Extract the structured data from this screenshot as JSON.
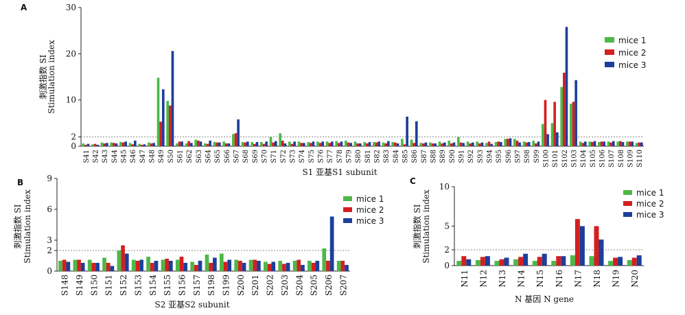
{
  "chart_data": [
    {
      "type": "bar",
      "panel_label": "A",
      "ylabel_cn": "刺激指数 SI",
      "ylabel_en": "Stimulation index",
      "xlabel": "S1 亚基S1 subunit",
      "ylim": [
        0,
        30
      ],
      "yticks": [
        0,
        2,
        10,
        20,
        30
      ],
      "threshold": 2,
      "categories": [
        "S41",
        "S42",
        "S43",
        "S44",
        "S45",
        "S46",
        "S47",
        "S48",
        "S49",
        "S50",
        "S61",
        "S62",
        "S63",
        "S64",
        "S65",
        "S66",
        "S67",
        "S68",
        "S69",
        "S70",
        "S71",
        "S72",
        "S73",
        "S74",
        "S75",
        "S76",
        "S77",
        "S78",
        "S79",
        "S80",
        "S81",
        "S82",
        "S83",
        "S84",
        "S85",
        "S86",
        "S87",
        "S88",
        "S89",
        "S90",
        "S91",
        "S92",
        "S93",
        "S94",
        "S95",
        "S96",
        "S97",
        "S98",
        "S99",
        "S100",
        "S101",
        "S102",
        "S103",
        "S104",
        "S105",
        "S106",
        "S107",
        "S108",
        "S109",
        "S110"
      ],
      "series": [
        {
          "name": "mice 1",
          "color": "#4db848",
          "values": [
            0.6,
            0.4,
            0.8,
            0.8,
            0.9,
            0.7,
            0.5,
            0.8,
            14.8,
            9.8,
            0.6,
            0.6,
            1.4,
            0.6,
            0.9,
            1.0,
            2.6,
            0.9,
            0.9,
            0.9,
            2.0,
            2.8,
            1.0,
            1.0,
            0.9,
            1.0,
            1.0,
            1.1,
            1.2,
            1.0,
            0.9,
            0.9,
            0.8,
            0.9,
            1.6,
            1.4,
            0.7,
            0.8,
            1.0,
            1.2,
            2.0,
            1.0,
            1.0,
            0.7,
            0.9,
            1.6,
            1.6,
            1.0,
            1.2,
            4.8,
            5.0,
            12.8,
            9.2,
            1.0,
            1.0,
            0.9,
            1.0,
            1.0,
            1.0,
            0.7
          ]
        },
        {
          "name": "mice 2",
          "color": "#d42020",
          "values": [
            0.3,
            0.5,
            0.6,
            0.7,
            0.8,
            0.4,
            0.3,
            0.6,
            5.3,
            8.8,
            1.0,
            1.1,
            1.2,
            0.5,
            0.8,
            0.6,
            2.8,
            0.8,
            0.5,
            0.5,
            0.8,
            1.2,
            0.5,
            0.7,
            0.7,
            0.7,
            0.7,
            0.7,
            0.8,
            0.6,
            0.6,
            0.8,
            0.6,
            0.8,
            0.4,
            0.7,
            0.6,
            0.6,
            0.6,
            0.6,
            0.8,
            0.6,
            0.6,
            1.0,
            1.0,
            1.6,
            1.2,
            0.8,
            0.6,
            10.0,
            9.6,
            15.9,
            9.6,
            0.7,
            0.9,
            1.0,
            0.8,
            1.1,
            1.0,
            0.8
          ]
        },
        {
          "name": "mice 3",
          "color": "#1d3f9a",
          "values": [
            0.5,
            0.3,
            0.7,
            0.6,
            1.0,
            1.2,
            0.4,
            0.7,
            12.3,
            20.6,
            1.0,
            0.7,
            1.0,
            1.2,
            0.8,
            0.6,
            5.8,
            1.0,
            0.9,
            1.0,
            1.1,
            0.6,
            1.0,
            0.7,
            1.0,
            1.0,
            1.0,
            1.0,
            0.7,
            0.6,
            0.9,
            1.0,
            1.1,
            0.6,
            6.4,
            5.4,
            0.8,
            0.6,
            0.8,
            0.8,
            0.7,
            0.8,
            0.8,
            0.5,
            0.9,
            1.7,
            0.8,
            0.9,
            1.0,
            2.6,
            3.0,
            25.8,
            14.3,
            1.0,
            1.1,
            1.0,
            1.1,
            0.9,
            1.0,
            0.8
          ]
        }
      ]
    },
    {
      "type": "bar",
      "panel_label": "B",
      "ylabel_cn": "刺激指数 SI",
      "ylabel_en": "Stimulation index",
      "xlabel": "S2 亚基S2 subunit",
      "ylim": [
        0,
        9
      ],
      "yticks": [
        0,
        2,
        3,
        6,
        9
      ],
      "threshold": 2,
      "categories": [
        "S148",
        "S149",
        "S150",
        "S151",
        "S152",
        "S153",
        "S154",
        "S155",
        "S156",
        "S157",
        "S198",
        "S199",
        "S200",
        "S201",
        "S202",
        "S203",
        "S204",
        "S205",
        "S206",
        "S207"
      ],
      "series": [
        {
          "name": "mice 1",
          "color": "#4db848",
          "values": [
            1.0,
            1.1,
            1.1,
            1.3,
            2.0,
            1.1,
            1.4,
            1.1,
            1.1,
            0.9,
            1.6,
            1.7,
            1.1,
            1.1,
            0.9,
            1.0,
            1.0,
            1.0,
            2.2,
            1.0
          ]
        },
        {
          "name": "mice 2",
          "color": "#d42020",
          "values": [
            1.1,
            1.1,
            0.8,
            0.8,
            2.5,
            1.0,
            0.8,
            1.2,
            1.4,
            0.6,
            0.8,
            0.9,
            1.0,
            1.1,
            0.7,
            0.7,
            1.1,
            0.8,
            1.0,
            1.0
          ]
        },
        {
          "name": "mice 3",
          "color": "#1d3f9a",
          "values": [
            0.9,
            0.8,
            0.8,
            0.5,
            1.7,
            1.1,
            1.0,
            1.0,
            0.8,
            1.0,
            1.3,
            1.1,
            0.8,
            1.0,
            0.9,
            0.8,
            0.6,
            1.0,
            5.3,
            0.6
          ]
        }
      ]
    },
    {
      "type": "bar",
      "panel_label": "C",
      "ylabel_cn": "刺激指数 SI",
      "ylabel_en": "Stimulation index",
      "xlabel": "N 基因 N gene",
      "ylim": [
        0,
        10
      ],
      "yticks": [
        0,
        2,
        5,
        10
      ],
      "threshold": 2,
      "categories": [
        "N11",
        "N12",
        "N13",
        "N14",
        "N15",
        "N16",
        "N17",
        "N18",
        "N19",
        "N20"
      ],
      "series": [
        {
          "name": "mice 1",
          "color": "#4db848",
          "values": [
            0.6,
            0.7,
            0.6,
            0.8,
            0.6,
            0.6,
            1.3,
            1.2,
            0.6,
            0.7
          ]
        },
        {
          "name": "mice 2",
          "color": "#d42020",
          "values": [
            1.2,
            1.1,
            0.8,
            1.1,
            1.1,
            1.2,
            5.9,
            5.0,
            1.0,
            1.0
          ]
        },
        {
          "name": "mice 3",
          "color": "#1d3f9a",
          "values": [
            0.8,
            1.2,
            1.0,
            1.5,
            1.5,
            1.2,
            5.0,
            3.3,
            1.1,
            1.3
          ]
        }
      ]
    }
  ]
}
